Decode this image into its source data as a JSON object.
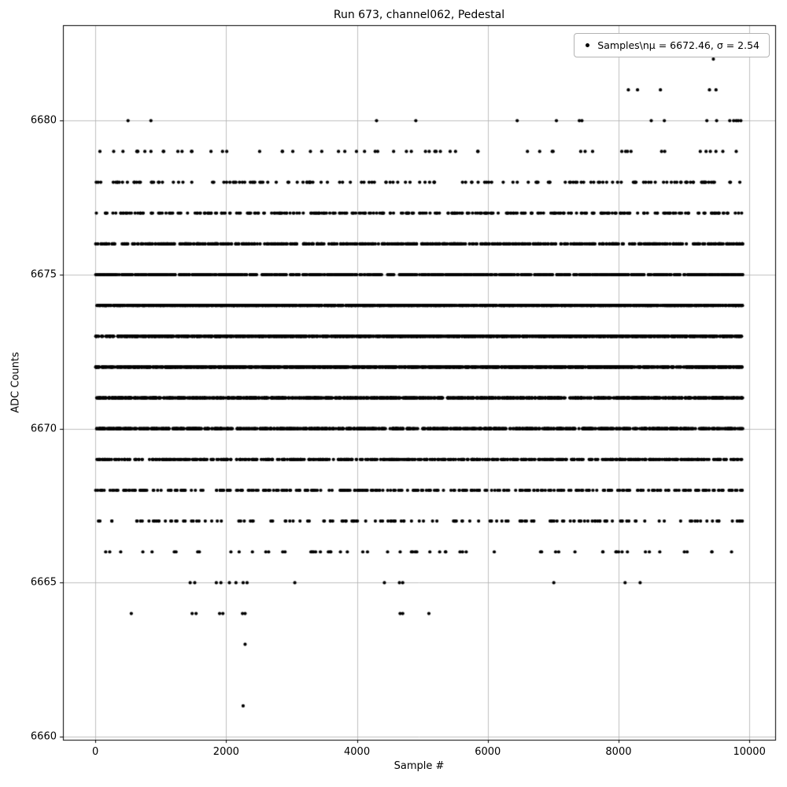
{
  "chart_data": {
    "type": "scatter",
    "title": "Run 673, channel062, Pedestal",
    "xlabel": "Sample #",
    "ylabel": "ADC Counts",
    "xlim": [
      -495,
      10395
    ],
    "ylim": [
      6659.9,
      6683.1
    ],
    "xticks": [
      0,
      2000,
      4000,
      6000,
      8000,
      10000
    ],
    "yticks": [
      6660,
      6665,
      6670,
      6675,
      6680
    ],
    "x_range": [
      0,
      9899
    ],
    "grid": true,
    "legend": {
      "position": "upper-right",
      "label": "Samples\\nμ = 6672.46, σ = 2.54"
    },
    "marker": {
      "color": "#000000",
      "radius": 2.1
    },
    "bands": [
      {
        "adc": 6682,
        "x": [
          9450
        ]
      },
      {
        "adc": 6681,
        "x": [
          8150,
          8290,
          8640,
          9390,
          9490
        ]
      },
      {
        "adc": 6680,
        "x": [
          500,
          850,
          4300,
          4900,
          6450,
          7050,
          7400,
          7440,
          8500,
          8700,
          9350,
          9500,
          9700,
          9760,
          9800,
          9830,
          9870
        ]
      },
      {
        "adc": 6679,
        "count": 60
      },
      {
        "adc": 6678,
        "count": 150
      },
      {
        "adc": 6677,
        "count": 320
      },
      {
        "adc": 6676,
        "count": 590
      },
      {
        "adc": 6675,
        "count": 950
      },
      {
        "adc": 6674,
        "count": 1290
      },
      {
        "adc": 6673,
        "count": 1520
      },
      {
        "adc": 6672,
        "count": 1530
      },
      {
        "adc": 6671,
        "count": 1320
      },
      {
        "adc": 6670,
        "count": 970
      },
      {
        "adc": 6669,
        "count": 615
      },
      {
        "adc": 6668,
        "count": 335
      },
      {
        "adc": 6667,
        "count": 155
      },
      {
        "adc": 6666,
        "count": 62
      },
      {
        "adc": 6665,
        "x": [
          1450,
          1520,
          1850,
          1920,
          2050,
          2150,
          2260,
          2320,
          3050,
          4420,
          4650,
          4700,
          7010,
          8100,
          8330
        ]
      },
      {
        "adc": 6664,
        "x": [
          550,
          1480,
          1540,
          1900,
          1950,
          2250,
          2290,
          4660,
          4700,
          5100
        ]
      },
      {
        "adc": 6663,
        "x": [
          2290
        ]
      },
      {
        "adc": 6661,
        "x": [
          2260
        ]
      }
    ]
  }
}
